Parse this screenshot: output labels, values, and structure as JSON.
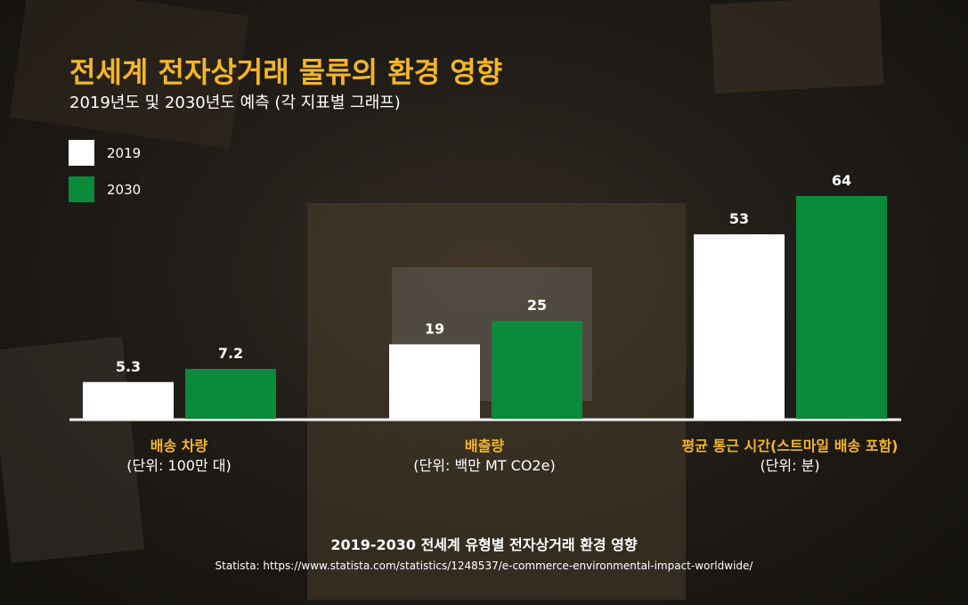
{
  "title": "전세계 전자상거래 물류의 환경 영향",
  "subtitle": "2019년도 및 2030년도 예측 (각 지표별 그래프)",
  "legend": [
    {
      "label": "2019",
      "color": "#ffffff"
    },
    {
      "label": "2030",
      "color": "#0a8a3a"
    }
  ],
  "chart_data": {
    "type": "bar",
    "categories": [
      {
        "name": "배송 차량",
        "unit": "(단위: 100만 대)"
      },
      {
        "name": "배출량",
        "unit": "(단위:  백만 MT CO2e)"
      },
      {
        "name": "평균 통근 시간(스트마일 배송 포함)",
        "unit": "(단위: 분)"
      }
    ],
    "series": [
      {
        "name": "2019",
        "color": "#ffffff",
        "values": [
          5.3,
          19,
          53
        ],
        "labels": [
          "5.3",
          "19",
          "53"
        ]
      },
      {
        "name": "2030",
        "color": "#0a8a3a",
        "values": [
          7.2,
          25,
          64
        ],
        "labels": [
          "7.2",
          "25",
          "64"
        ]
      }
    ],
    "scale_note": "each metric plotted on its own scale"
  },
  "footer_title": "2019-2030 전세계 유형별 전자상거래 환경 영향",
  "source": "Statista: https://www.statista.com/statistics/1248537/e-commerce-environmental-impact-worldwide/"
}
